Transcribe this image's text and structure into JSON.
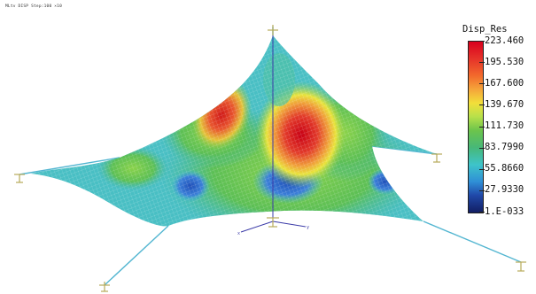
{
  "header": {
    "label": "MLtv DISP Step:100 ×10"
  },
  "legend": {
    "title": "Disp_Res",
    "values": [
      "223.460",
      "195.530",
      "167.600",
      "139.670",
      "111.730",
      "83.7990",
      "55.8660",
      "27.9330",
      "1.E-033"
    ]
  },
  "colors": {
    "max": "#d9001d",
    "high": "#f5a53a",
    "mid": "#f2df3a",
    "midlow": "#6cc44c",
    "low": "#3ec4c9",
    "min": "#121e63",
    "cable": "#53b6d1",
    "support": "#c8c070"
  }
}
